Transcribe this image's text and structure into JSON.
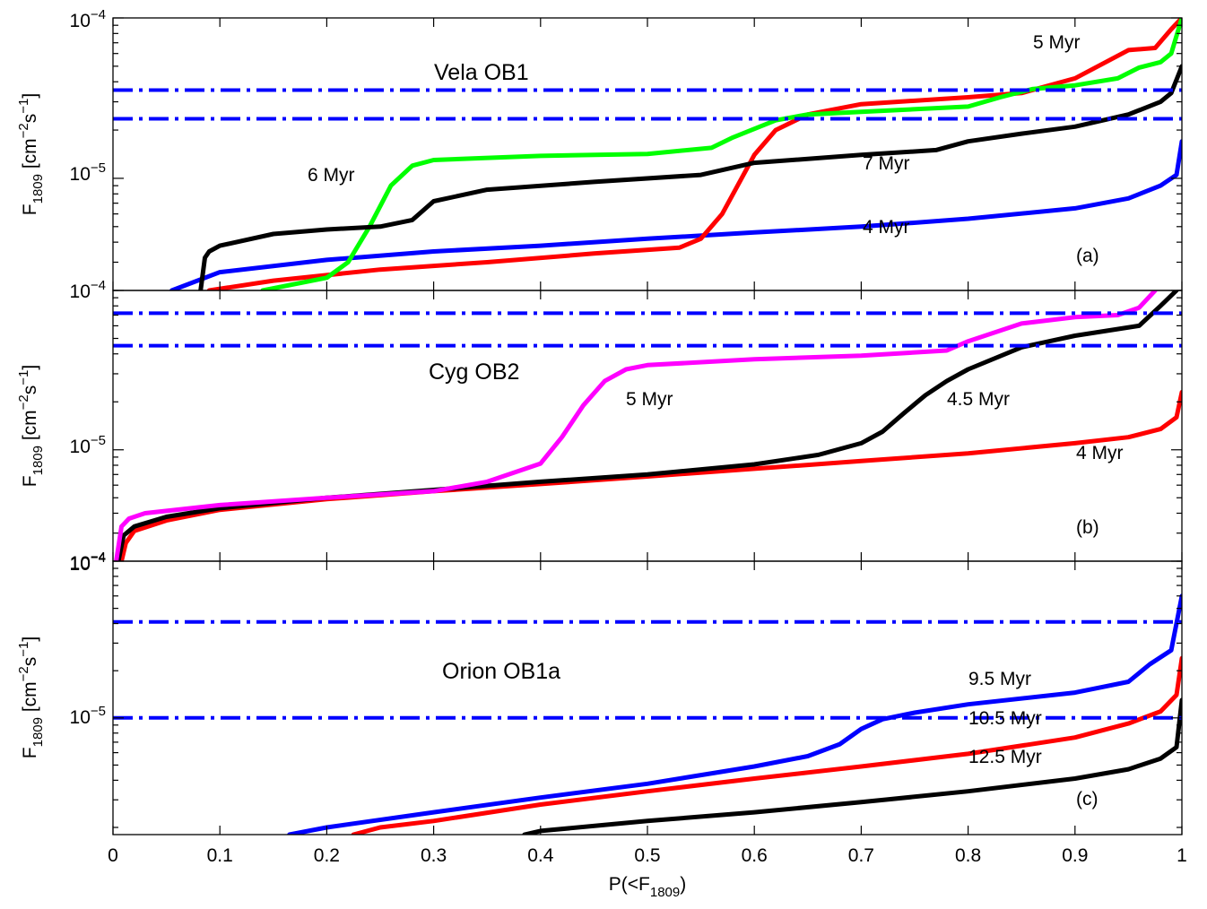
{
  "chart_data": [
    {
      "type": "line",
      "panel_label": "(a)",
      "title": "Vela OB1",
      "xlabel": "P(<F1809)",
      "ylabel": "F1809 [cm-2s-1]",
      "ylabel_parts": {
        "base": "F",
        "sub": "1809",
        "unit_open": " [cm",
        "exp1": "−2",
        "mid": "s",
        "exp2": "−1",
        "unit_close": "]"
      },
      "xlim": [
        0,
        1
      ],
      "ylim": [
        2e-06,
        0.0001
      ],
      "yscale": "log",
      "yticks": [
        1e-05,
        0.0001
      ],
      "ytick_labels": [
        {
          "value": 0.0001,
          "base": "10",
          "exp": "−4"
        },
        {
          "value": 1e-05,
          "base": "10",
          "exp": "−5"
        },
        {
          "value": 2e-06,
          "base": "10",
          "exp": "−4"
        }
      ],
      "reference_lines": [
        3.55e-05,
        2.35e-05
      ],
      "series": [
        {
          "name": "4 Myr",
          "color": "#0000ff",
          "x": [
            0.055,
            0.1,
            0.2,
            0.3,
            0.4,
            0.5,
            0.6,
            0.7,
            0.8,
            0.9,
            0.95,
            0.98,
            0.995,
            1.0
          ],
          "y": [
            2e-06,
            2.6e-06,
            3.1e-06,
            3.5e-06,
            3.8e-06,
            4.2e-06,
            4.6e-06,
            5e-06,
            5.6e-06,
            6.5e-06,
            7.5e-06,
            9e-06,
            1.05e-05,
            1.7e-05
          ]
        },
        {
          "name": "5 Myr",
          "color": "#ff0000",
          "x": [
            0.09,
            0.15,
            0.25,
            0.35,
            0.45,
            0.53,
            0.55,
            0.57,
            0.6,
            0.62,
            0.65,
            0.7,
            0.8,
            0.85,
            0.9,
            0.95,
            0.975,
            0.99,
            1.0
          ],
          "y": [
            2e-06,
            2.3e-06,
            2.7e-06,
            3e-06,
            3.4e-06,
            3.7e-06,
            4.2e-06,
            6e-06,
            1.4e-05,
            2e-05,
            2.5e-05,
            2.9e-05,
            3.2e-05,
            3.4e-05,
            4.2e-05,
            6.3e-05,
            6.5e-05,
            8.5e-05,
            0.0001
          ]
        },
        {
          "name": "6 Myr",
          "color": "#00ff00",
          "x": [
            0.14,
            0.2,
            0.22,
            0.24,
            0.26,
            0.28,
            0.3,
            0.4,
            0.5,
            0.56,
            0.58,
            0.62,
            0.65,
            0.7,
            0.8,
            0.83,
            0.86,
            0.9,
            0.94,
            0.96,
            0.98,
            0.99,
            1.0
          ],
          "y": [
            2e-06,
            2.4e-06,
            3e-06,
            5e-06,
            9e-06,
            1.2e-05,
            1.3e-05,
            1.38e-05,
            1.42e-05,
            1.55e-05,
            1.8e-05,
            2.3e-05,
            2.5e-05,
            2.6e-05,
            2.8e-05,
            3.2e-05,
            3.6e-05,
            3.8e-05,
            4.2e-05,
            4.9e-05,
            5.3e-05,
            6e-05,
            0.0001
          ]
        },
        {
          "name": "7 Myr",
          "color": "#000000",
          "x": [
            0.082,
            0.086,
            0.09,
            0.1,
            0.15,
            0.2,
            0.25,
            0.28,
            0.3,
            0.35,
            0.45,
            0.55,
            0.6,
            0.7,
            0.77,
            0.8,
            0.85,
            0.9,
            0.95,
            0.98,
            0.99,
            1.0
          ],
          "y": [
            2e-06,
            3.2e-06,
            3.5e-06,
            3.8e-06,
            4.5e-06,
            4.8e-06,
            5e-06,
            5.5e-06,
            7.2e-06,
            8.5e-06,
            9.5e-06,
            1.05e-05,
            1.25e-05,
            1.4e-05,
            1.5e-05,
            1.7e-05,
            1.9e-05,
            2.1e-05,
            2.5e-05,
            3e-05,
            3.4e-05,
            5e-05
          ]
        }
      ],
      "annotations": [
        "5 Myr",
        "6 Myr",
        "7 Myr",
        "4 Myr"
      ]
    },
    {
      "type": "line",
      "panel_label": "(b)",
      "title": "Cyg OB2",
      "xlabel": "",
      "ylabel": "F1809 [cm-2s-1]",
      "ylabel_parts": {
        "base": "F",
        "sub": "1809",
        "unit_open": " [cm",
        "exp1": "−2",
        "mid": "s",
        "exp2": "−1",
        "unit_close": "]"
      },
      "xlim": [
        0,
        1
      ],
      "ylim": [
        2e-06,
        0.0001
      ],
      "yscale": "log",
      "yticks": [
        1e-05
      ],
      "ytick_labels": [
        {
          "value": 1e-05,
          "base": "10",
          "exp": "−5"
        },
        {
          "value": 2e-06,
          "base": "10",
          "exp": "−4"
        }
      ],
      "reference_lines": [
        7.2e-05,
        4.5e-05
      ],
      "series": [
        {
          "name": "4 Myr",
          "color": "#ff0000",
          "x": [
            0.008,
            0.012,
            0.02,
            0.05,
            0.1,
            0.2,
            0.3,
            0.4,
            0.5,
            0.6,
            0.7,
            0.8,
            0.9,
            0.95,
            0.98,
            0.995,
            1.0
          ],
          "y": [
            2e-06,
            2.6e-06,
            3.1e-06,
            3.6e-06,
            4.2e-06,
            4.9e-06,
            5.5e-06,
            6.1e-06,
            6.8e-06,
            7.6e-06,
            8.5e-06,
            9.5e-06,
            1.1e-05,
            1.2e-05,
            1.35e-05,
            1.6e-05,
            2.3e-05
          ]
        },
        {
          "name": "4.5 Myr",
          "color": "#000000",
          "x": [
            0.005,
            0.01,
            0.02,
            0.05,
            0.1,
            0.2,
            0.3,
            0.4,
            0.5,
            0.6,
            0.66,
            0.7,
            0.72,
            0.74,
            0.76,
            0.78,
            0.8,
            0.85,
            0.9,
            0.96,
            0.98,
            0.995
          ],
          "y": [
            2e-06,
            2.9e-06,
            3.3e-06,
            3.8e-06,
            4.3e-06,
            5e-06,
            5.6e-06,
            6.3e-06,
            7e-06,
            8.1e-06,
            9.3e-06,
            1.1e-05,
            1.3e-05,
            1.7e-05,
            2.2e-05,
            2.7e-05,
            3.2e-05,
            4.4e-05,
            5.2e-05,
            6e-05,
            8e-05,
            0.0001
          ]
        },
        {
          "name": "5 Myr",
          "color": "#ff00ff",
          "x": [
            0.003,
            0.008,
            0.015,
            0.03,
            0.1,
            0.2,
            0.3,
            0.35,
            0.4,
            0.42,
            0.44,
            0.46,
            0.48,
            0.5,
            0.6,
            0.7,
            0.78,
            0.8,
            0.85,
            0.9,
            0.94,
            0.96,
            0.975
          ],
          "y": [
            2e-06,
            3.3e-06,
            3.7e-06,
            4e-06,
            4.5e-06,
            5e-06,
            5.5e-06,
            6.3e-06,
            8.2e-06,
            1.2e-05,
            1.9e-05,
            2.7e-05,
            3.2e-05,
            3.4e-05,
            3.7e-05,
            3.9e-05,
            4.2e-05,
            4.8e-05,
            6.2e-05,
            6.8e-05,
            7e-05,
            7.8e-05,
            0.0001
          ]
        }
      ],
      "annotations": [
        "5 Myr",
        "4.5 Myr",
        "4 Myr"
      ]
    },
    {
      "type": "line",
      "panel_label": "(c)",
      "title": "Orion OB1a",
      "xlabel": "P(<F1809)",
      "ylabel": "F1809 [cm-2s-1]",
      "ylabel_parts": {
        "base": "F",
        "sub": "1809",
        "unit_open": " [cm",
        "exp1": "−2",
        "mid": "s",
        "exp2": "−1",
        "unit_close": "]"
      },
      "xlim": [
        0,
        1
      ],
      "ylim": [
        1.8e-06,
        0.0001
      ],
      "yscale": "log",
      "yticks": [
        1e-05
      ],
      "ytick_labels": [
        {
          "value": 0.0001,
          "base": "10",
          "exp": "−4"
        },
        {
          "value": 1e-05,
          "base": "10",
          "exp": "−5"
        }
      ],
      "xticks": [
        0,
        0.1,
        0.2,
        0.3,
        0.4,
        0.5,
        0.6,
        0.7,
        0.8,
        0.9,
        1
      ],
      "xtick_labels": [
        "0",
        "0.1",
        "0.2",
        "0.3",
        "0.4",
        "0.5",
        "0.6",
        "0.7",
        "0.8",
        "0.9",
        "1"
      ],
      "xlabel_parts": {
        "base": "P(<F",
        "sub": "1809",
        "close": ")"
      },
      "reference_lines": [
        4.1e-05,
        1e-05
      ],
      "series": [
        {
          "name": "9.5 Myr",
          "color": "#0000ff",
          "x": [
            0.165,
            0.2,
            0.3,
            0.4,
            0.5,
            0.6,
            0.65,
            0.68,
            0.7,
            0.72,
            0.75,
            0.8,
            0.9,
            0.95,
            0.97,
            0.99,
            1.0
          ],
          "y": [
            1.8e-06,
            2e-06,
            2.5e-06,
            3.1e-06,
            3.8e-06,
            4.9e-06,
            5.7e-06,
            6.8e-06,
            8.5e-06,
            9.8e-06,
            1.08e-05,
            1.22e-05,
            1.45e-05,
            1.7e-05,
            2.2e-05,
            2.7e-05,
            6e-05
          ]
        },
        {
          "name": "10.5 Myr",
          "color": "#ff0000",
          "x": [
            0.225,
            0.25,
            0.3,
            0.4,
            0.5,
            0.6,
            0.7,
            0.8,
            0.9,
            0.95,
            0.98,
            0.995,
            1.0
          ],
          "y": [
            1.8e-06,
            2e-06,
            2.2e-06,
            2.8e-06,
            3.4e-06,
            4.1e-06,
            4.9e-06,
            5.9e-06,
            7.5e-06,
            9.2e-06,
            1.1e-05,
            1.4e-05,
            2.4e-05
          ]
        },
        {
          "name": "12.5 Myr",
          "color": "#000000",
          "x": [
            0.385,
            0.4,
            0.5,
            0.6,
            0.7,
            0.8,
            0.9,
            0.95,
            0.98,
            0.995,
            1.0
          ],
          "y": [
            1.8e-06,
            1.9e-06,
            2.2e-06,
            2.5e-06,
            2.9e-06,
            3.4e-06,
            4.1e-06,
            4.7e-06,
            5.5e-06,
            6.5e-06,
            1.3e-05
          ]
        }
      ],
      "annotations": [
        "9.5 Myr",
        "10.5 Myr",
        "12.5 Myr"
      ]
    }
  ]
}
